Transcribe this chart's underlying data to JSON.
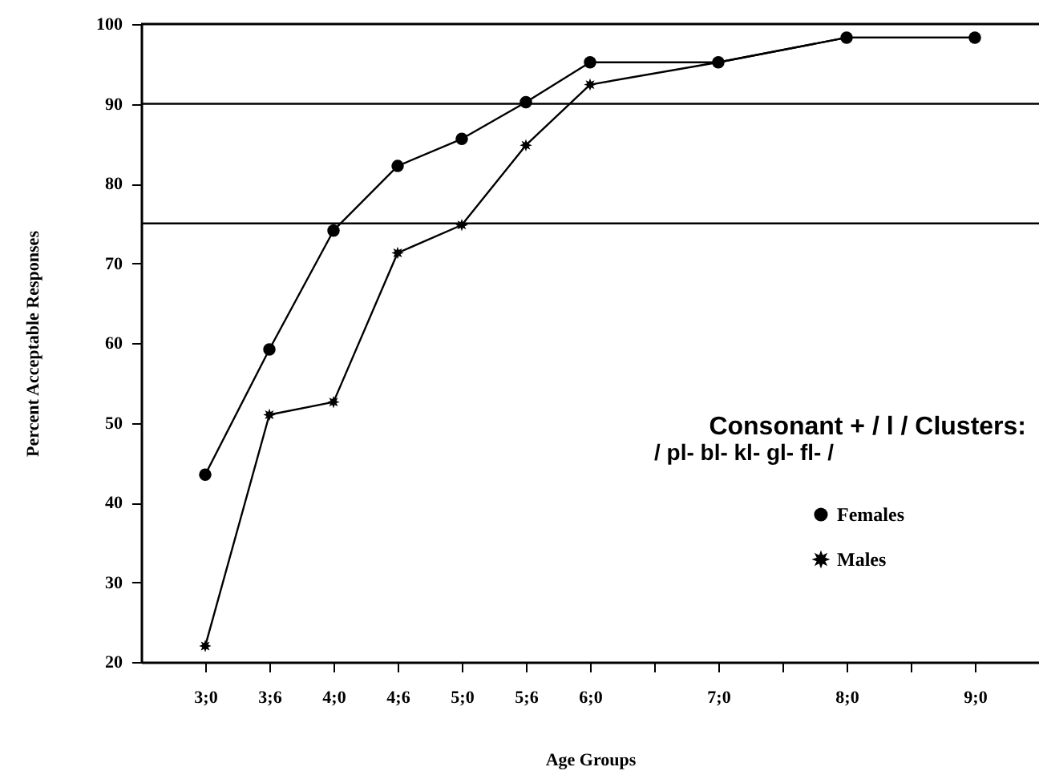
{
  "chart_data": {
    "type": "line",
    "title": "Consonant + / l / Clusters:",
    "subtitle": "/ pl- bl- kl- gl- fl- /",
    "xlabel": "Age Groups",
    "ylabel": "Percent Acceptable Responses",
    "categories": [
      "3;0",
      "3;6",
      "4;0",
      "4;6",
      "5;0",
      "5;6",
      "6;0",
      null,
      "7;0",
      null,
      "8;0",
      null,
      "9;0"
    ],
    "series": [
      {
        "name": "Females",
        "color": "#000000",
        "marker": "circle",
        "values": [
          43.5,
          59.2,
          74.1,
          82.2,
          85.6,
          90.2,
          95.2,
          null,
          95.2,
          null,
          98.3,
          null,
          98.3
        ]
      },
      {
        "name": "Males",
        "color": "#000000",
        "marker": "star",
        "values": [
          22,
          51,
          52.6,
          71.3,
          74.8,
          84.8,
          92.4,
          null,
          95.2,
          null,
          98.3,
          null,
          98.3
        ]
      }
    ],
    "ylim": [
      20,
      100
    ],
    "yticks": [
      20,
      30,
      40,
      50,
      60,
      70,
      80,
      90,
      100
    ],
    "ref_lines": [
      {
        "axis": "y",
        "value": 90,
        "color": "#000000"
      },
      {
        "axis": "y",
        "value": 75,
        "color": "#000000"
      }
    ],
    "grid": false,
    "legend": "right",
    "line_style": "solid"
  }
}
